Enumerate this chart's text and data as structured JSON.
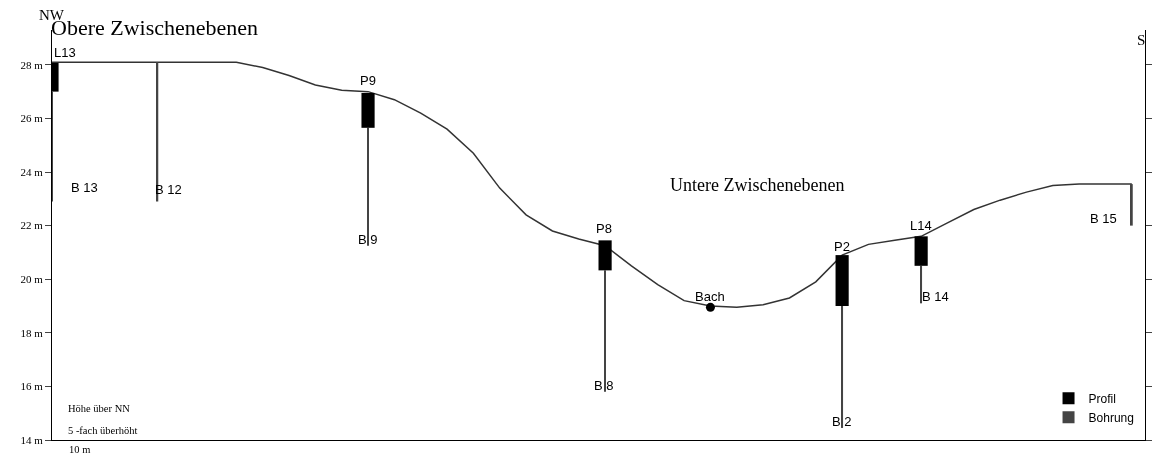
{
  "chart_data": {
    "type": "line",
    "ylim": [
      14,
      29.3
    ],
    "yticks": [
      {
        "value": 14,
        "label": "14 m"
      },
      {
        "value": 16,
        "label": "16 m"
      },
      {
        "value": 18,
        "label": "18 m"
      },
      {
        "value": 20,
        "label": "20 m"
      },
      {
        "value": 22,
        "label": "22 m"
      },
      {
        "value": 24,
        "label": "24 m"
      },
      {
        "value": 26,
        "label": "26 m"
      },
      {
        "value": 28,
        "label": "28 m"
      }
    ],
    "legend": "bottom right",
    "categories": [
      null,
      null,
      null,
      null,
      null,
      null,
      null,
      null,
      null,
      null,
      null,
      null,
      null,
      null,
      null,
      null,
      null,
      null,
      null,
      null,
      null,
      null,
      null,
      null,
      null,
      null,
      null,
      null,
      null,
      null,
      null,
      null,
      null,
      null,
      null,
      null,
      null,
      null,
      null,
      null,
      null,
      null
    ],
    "series": [
      {
        "color": "#333333",
        "values": [
          28.1,
          28.1,
          28.1,
          28.1,
          28.1,
          28.1,
          28.1,
          28.1,
          27.9,
          27.6,
          27.25,
          27.05,
          27.0,
          26.7,
          26.2,
          25.6,
          24.7,
          23.4,
          22.4,
          21.8,
          21.5,
          21.25,
          20.5,
          19.8,
          19.2,
          19.0,
          18.95,
          19.05,
          19.3,
          19.9,
          20.9,
          21.3,
          21.45,
          21.6,
          22.1,
          22.6,
          22.95,
          23.25,
          23.5,
          23.55,
          23.55,
          23.55
        ]
      },
      {
        "type": "bar",
        "name": "Bohrung",
        "color": "#444444",
        "base": [
          22.9,
          null,
          null,
          null,
          22.9,
          null,
          null,
          null,
          null,
          null,
          null,
          null,
          21.25,
          null,
          null,
          null,
          null,
          null,
          null,
          null,
          null,
          15.8,
          null,
          null,
          null,
          null,
          null,
          null,
          null,
          null,
          14.45,
          null,
          null,
          19.1,
          null,
          null,
          null,
          null,
          null,
          null,
          null,
          22.0
        ],
        "values": [
          4.1,
          null,
          null,
          null,
          5.2,
          null,
          null,
          null,
          null,
          null,
          null,
          null,
          4.4,
          null,
          null,
          null,
          null,
          null,
          null,
          null,
          null,
          4.53,
          null,
          null,
          null,
          null,
          null,
          null,
          null,
          null,
          4.55,
          null,
          null,
          1.4,
          null,
          null,
          null,
          null,
          null,
          null,
          null,
          1.55
        ]
      },
      {
        "type": "bar",
        "name": "Profil",
        "color": "#000000",
        "base": [
          27.0,
          null,
          null,
          null,
          null,
          null,
          null,
          null,
          null,
          null,
          null,
          null,
          25.65,
          null,
          null,
          null,
          null,
          null,
          null,
          null,
          null,
          20.33,
          null,
          null,
          null,
          null,
          null,
          null,
          null,
          null,
          19.0,
          null,
          null,
          20.5,
          null,
          null,
          null,
          null,
          null,
          null,
          null,
          null
        ],
        "values": [
          1.07,
          null,
          null,
          null,
          null,
          null,
          null,
          null,
          null,
          null,
          null,
          null,
          1.3,
          null,
          null,
          null,
          null,
          null,
          null,
          null,
          null,
          1.12,
          null,
          null,
          null,
          null,
          null,
          null,
          null,
          null,
          1.9,
          null,
          null,
          1.1,
          null,
          null,
          null,
          null,
          null,
          null,
          null,
          null
        ]
      },
      {
        "type": "scatter",
        "color": "#000000",
        "marker": "circle",
        "values": [
          null,
          null,
          null,
          null,
          null,
          null,
          null,
          null,
          null,
          null,
          null,
          null,
          null,
          null,
          null,
          null,
          null,
          null,
          null,
          null,
          null,
          null,
          null,
          null,
          null,
          18.95,
          null,
          null,
          null,
          null,
          null,
          null,
          null,
          null,
          null,
          null,
          null,
          null,
          null,
          null,
          null,
          null
        ]
      }
    ],
    "annotations": [
      "NW",
      "S",
      "Obere Zwischenebenen",
      "Untere Zwischenebenen",
      "L13",
      "P9",
      "P8",
      "Bach",
      "P2",
      "L14",
      "B 13",
      "B 12",
      "B 9",
      "B 8",
      "B 2",
      "B 14",
      "B 15",
      "Höhe über NN",
      "5 -fach überhöht",
      "10 m"
    ]
  }
}
